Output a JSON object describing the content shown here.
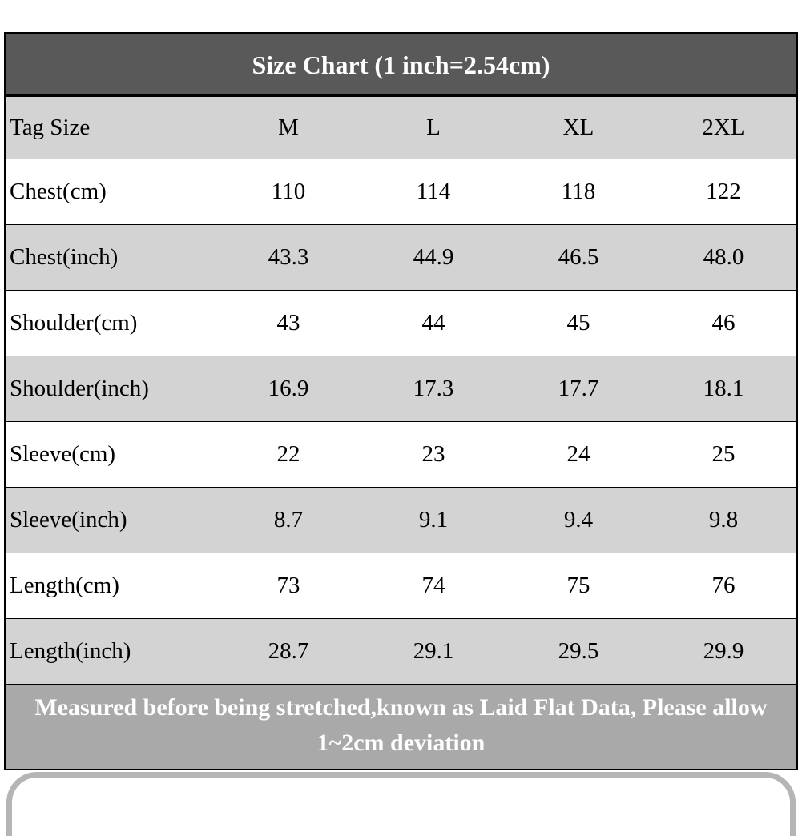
{
  "title": "Size Chart (1 inch=2.54cm)",
  "table": {
    "headers": [
      "Tag Size",
      "M",
      "L",
      "XL",
      "2XL"
    ],
    "rows": [
      {
        "label": "Chest(cm)",
        "values": [
          "110",
          "114",
          "118",
          "122"
        ]
      },
      {
        "label": "Chest(inch)",
        "values": [
          "43.3",
          "44.9",
          "46.5",
          "48.0"
        ]
      },
      {
        "label": "Shoulder(cm)",
        "values": [
          "43",
          "44",
          "45",
          "46"
        ]
      },
      {
        "label": "Shoulder(inch)",
        "values": [
          "16.9",
          "17.3",
          "17.7",
          "18.1"
        ]
      },
      {
        "label": "Sleeve(cm)",
        "values": [
          "22",
          "23",
          "24",
          "25"
        ]
      },
      {
        "label": "Sleeve(inch)",
        "values": [
          "8.7",
          "9.1",
          "9.4",
          "9.8"
        ]
      },
      {
        "label": "Length(cm)",
        "values": [
          "73",
          "74",
          "75",
          "76"
        ]
      },
      {
        "label": "Length(inch)",
        "values": [
          "28.7",
          "29.1",
          "29.5",
          "29.9"
        ]
      }
    ]
  },
  "footer": {
    "text": "Measured before being stretched,known as Laid Flat Data, Please allow 1~2cm deviation"
  },
  "colors": {
    "title_bg": "#595959",
    "header_bg": "#d3d3d3",
    "row_alt_bg": "#d3d3d3",
    "footer_bg": "#a9a9a9",
    "border": "#000000",
    "title_text": "#ffffff",
    "footer_text": "#ffffff",
    "cell_text": "#000000"
  }
}
